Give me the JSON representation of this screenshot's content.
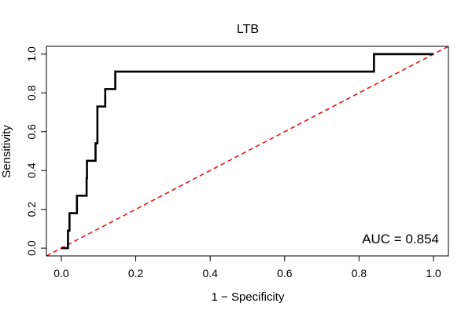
{
  "chart_data": {
    "type": "line",
    "title": "LTB",
    "xlabel": "1 − Specificity",
    "ylabel": "Sensitivity",
    "xlim": [
      -0.04,
      1.04
    ],
    "ylim": [
      -0.04,
      1.04
    ],
    "xticks": [
      0.0,
      0.2,
      0.4,
      0.6,
      0.8,
      1.0
    ],
    "xtick_labels": [
      "0.0",
      "0.2",
      "0.4",
      "0.6",
      "0.8",
      "1.0"
    ],
    "yticks": [
      0.0,
      0.2,
      0.4,
      0.6,
      0.8,
      1.0
    ],
    "ytick_labels": [
      "0.0",
      "0.2",
      "0.4",
      "0.6",
      "0.8",
      "1.0"
    ],
    "grid": false,
    "series": [
      {
        "name": "ROC curve",
        "color": "#000000",
        "style": "solid-step",
        "x": [
          0.0,
          0.018,
          0.018,
          0.022,
          0.022,
          0.042,
          0.042,
          0.068,
          0.068,
          0.069,
          0.069,
          0.092,
          0.092,
          0.097,
          0.097,
          0.118,
          0.118,
          0.145,
          0.145,
          0.84,
          0.84,
          1.0
        ],
        "y": [
          0.0,
          0.0,
          0.09,
          0.09,
          0.18,
          0.18,
          0.27,
          0.27,
          0.36,
          0.36,
          0.45,
          0.45,
          0.54,
          0.54,
          0.73,
          0.73,
          0.82,
          0.82,
          0.91,
          0.91,
          1.0,
          1.0
        ]
      },
      {
        "name": "Reference line",
        "color": "#e41a1c",
        "style": "dashed",
        "x": [
          -0.04,
          1.04
        ],
        "y": [
          -0.04,
          1.04
        ]
      }
    ],
    "annotation": "AUC = 0.854"
  }
}
